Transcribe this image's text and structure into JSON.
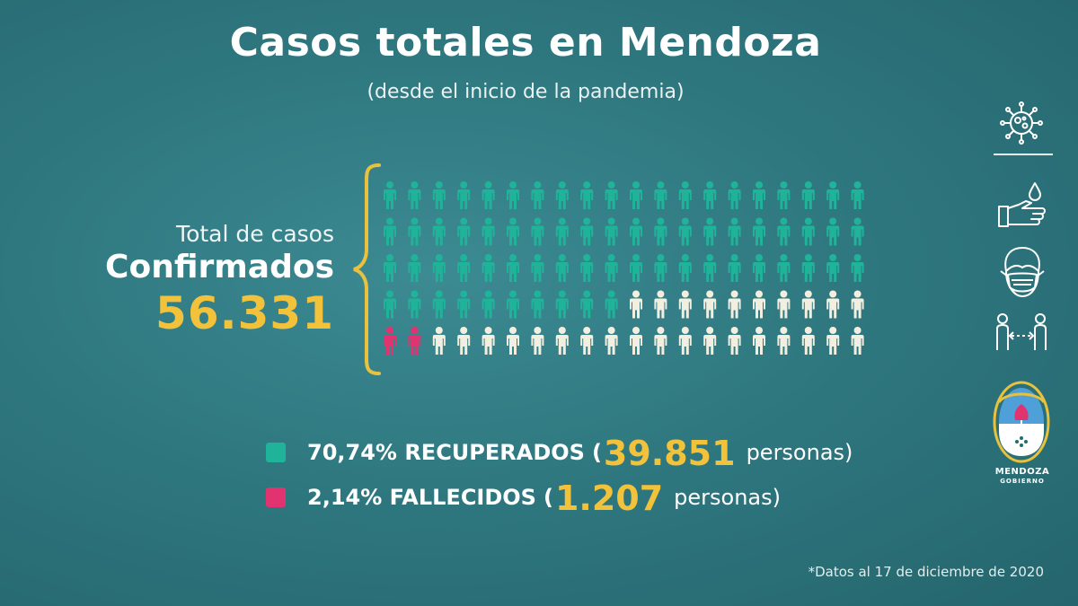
{
  "header": {
    "title": "Casos totales en Mendoza",
    "subtitle": "(desde el inicio de la pandemia)"
  },
  "total": {
    "label": "Total de casos",
    "heading": "Confirmados",
    "value": "56.331"
  },
  "legend": {
    "recovered": {
      "percent_label": "70,74% RECUPERADOS",
      "open": "(",
      "count": "39.851",
      "unit": "personas)"
    },
    "deceased": {
      "percent_label": "2,14% FALLECIDOS",
      "open": "(",
      "count": "1.207",
      "unit": "personas)"
    }
  },
  "footnote": "*Datos al 17 de diciembre de 2020",
  "logo": {
    "line1": "MENDOZA",
    "line2": "GOBIERNO"
  },
  "colors": {
    "recovered": "#1fb39a",
    "deceased": "#e0336f",
    "active": "#f3efe0",
    "accent": "#f2c23b",
    "brace": "#e8c23e"
  },
  "side_icons": [
    "virus-icon",
    "hand-wash-icon",
    "face-mask-icon",
    "social-distance-icon"
  ],
  "chart_data": {
    "type": "pictogram",
    "title": "Casos totales en Mendoza",
    "subtitle": "(desde el inicio de la pandemia)",
    "total": 56331,
    "grid": {
      "rows": 5,
      "cols": 20
    },
    "series": [
      {
        "name": "RECUPERADOS",
        "percent": 70.74,
        "value": 39851,
        "color": "#1fb39a"
      },
      {
        "name": "FALLECIDOS",
        "percent": 2.14,
        "value": 1207,
        "color": "#e0336f"
      }
    ],
    "remainder_color": "#f3efe0"
  }
}
